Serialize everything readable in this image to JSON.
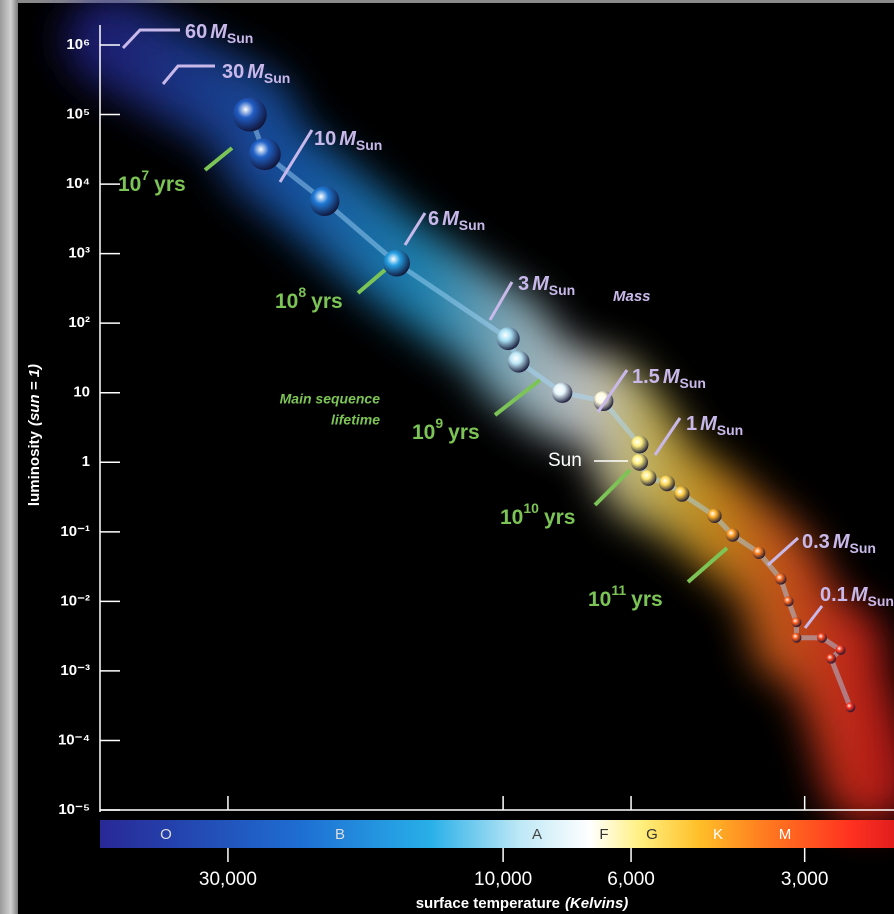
{
  "chart_data": {
    "type": "scatter",
    "xlabel": "surface temperature",
    "xlabel_italic": "(Kelvins)",
    "ylabel": "luminosity",
    "ylabel_italic": "(sun = 1)",
    "x": [
      27500,
      25900,
      20400,
      15300,
      9800,
      9400,
      7900,
      6700,
      5800,
      5800,
      5600,
      5200,
      4900,
      4300,
      4000,
      3600,
      3300,
      3200,
      3100,
      3100,
      2800,
      2600,
      2700,
      2500
    ],
    "values": [
      100000,
      27000,
      5700,
      730,
      60,
      28,
      10,
      7.6,
      1.8,
      1,
      0.6,
      0.5,
      0.35,
      0.17,
      0.09,
      0.05,
      0.021,
      0.01,
      0.005,
      0.003,
      0.003,
      0.002,
      0.0015,
      0.0003
    ],
    "xscale": "log",
    "yscale": "log",
    "xlim": [
      50000,
      2100
    ],
    "ylim": [
      1e-05,
      1000000
    ],
    "yticks": [
      {
        "value": 1000000,
        "label": "10⁶"
      },
      {
        "value": 100000,
        "label": "10⁵"
      },
      {
        "value": 10000,
        "label": "10⁴"
      },
      {
        "value": 1000,
        "label": "10³"
      },
      {
        "value": 100,
        "label": "10²"
      },
      10,
      1,
      {
        "value": 0.1,
        "label": "10⁻¹"
      },
      {
        "value": 0.01,
        "label": "10⁻²"
      },
      {
        "value": 0.001,
        "label": "10⁻³"
      },
      {
        "value": 0.0001,
        "label": "10⁻⁴"
      },
      {
        "value": 1e-05,
        "label": "10⁻⁵"
      }
    ],
    "xticks": [
      {
        "value": 30000,
        "label": "30,000"
      },
      {
        "value": 10000,
        "label": "10,000"
      },
      {
        "value": 6000,
        "label": "6,000"
      },
      {
        "value": 3000,
        "label": "3,000"
      }
    ],
    "spectral_classes": [
      "O",
      "B",
      "A",
      "F",
      "G",
      "K",
      "M"
    ],
    "mass_labels": [
      60,
      30,
      10,
      6,
      3,
      1.5,
      1,
      0.3,
      0.1
    ],
    "mass_unit": "M",
    "mass_unit_sub": "Sun",
    "lifetime_exponents": [
      7,
      8,
      9,
      10,
      11
    ],
    "lifetime_base": "10",
    "lifetime_unit": "yrs",
    "mass_title": "Mass",
    "lifetime_title": [
      "Main sequence",
      "lifetime"
    ],
    "sun_label": "Sun"
  }
}
